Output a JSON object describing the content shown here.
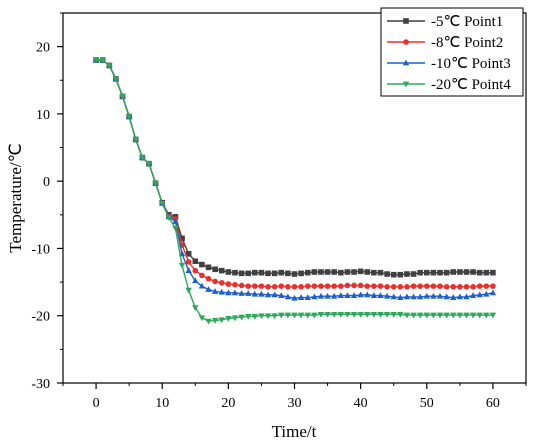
{
  "chart_data": {
    "type": "line",
    "xlabel": "Time/t",
    "ylabel": "Temperature/℃",
    "xlim": [
      -5,
      65
    ],
    "ylim": [
      -30,
      25
    ],
    "xticks": [
      0,
      10,
      20,
      30,
      40,
      50,
      60
    ],
    "yticks": [
      -30,
      -20,
      -10,
      0,
      10,
      20
    ],
    "legend_position": "top-right",
    "series": [
      {
        "name": "-5℃    Point1",
        "color": "#404040",
        "marker": "square",
        "x": [
          0,
          1,
          2,
          3,
          4,
          5,
          6,
          7,
          8,
          9,
          10,
          11,
          12,
          13,
          14,
          15,
          16,
          17,
          18,
          19,
          20,
          21,
          22,
          23,
          24,
          25,
          26,
          27,
          28,
          29,
          30,
          31,
          32,
          33,
          34,
          35,
          36,
          37,
          38,
          39,
          40,
          41,
          42,
          43,
          44,
          45,
          46,
          47,
          48,
          49,
          50,
          51,
          52,
          53,
          54,
          55,
          56,
          57,
          58,
          59,
          60
        ],
        "values": [
          18,
          18,
          17.2,
          15.2,
          12.6,
          9.6,
          6.2,
          3.5,
          2.6,
          -0.3,
          -3.2,
          -5,
          -5.3,
          -8.5,
          -10.8,
          -11.9,
          -12.4,
          -12.8,
          -13.1,
          -13.3,
          -13.5,
          -13.6,
          -13.7,
          -13.7,
          -13.6,
          -13.6,
          -13.7,
          -13.7,
          -13.6,
          -13.7,
          -13.8,
          -13.7,
          -13.6,
          -13.5,
          -13.5,
          -13.5,
          -13.5,
          -13.6,
          -13.5,
          -13.5,
          -13.4,
          -13.5,
          -13.6,
          -13.6,
          -13.8,
          -13.9,
          -13.9,
          -13.8,
          -13.8,
          -13.6,
          -13.6,
          -13.6,
          -13.6,
          -13.6,
          -13.5,
          -13.5,
          -13.5,
          -13.5,
          -13.6,
          -13.6,
          -13.6
        ]
      },
      {
        "name": "-8℃    Point2",
        "color": "#e8312c",
        "marker": "circle",
        "x": [
          0,
          1,
          2,
          3,
          4,
          5,
          6,
          7,
          8,
          9,
          10,
          11,
          12,
          13,
          14,
          15,
          16,
          17,
          18,
          19,
          20,
          21,
          22,
          23,
          24,
          25,
          26,
          27,
          28,
          29,
          30,
          31,
          32,
          33,
          34,
          35,
          36,
          37,
          38,
          39,
          40,
          41,
          42,
          43,
          44,
          45,
          46,
          47,
          48,
          49,
          50,
          51,
          52,
          53,
          54,
          55,
          56,
          57,
          58,
          59,
          60
        ],
        "values": [
          18,
          18,
          17.2,
          15.2,
          12.6,
          9.6,
          6.2,
          3.5,
          2.6,
          -0.3,
          -3.3,
          -5.2,
          -5.6,
          -9.5,
          -12,
          -13.3,
          -14,
          -14.5,
          -14.9,
          -15.1,
          -15.3,
          -15.4,
          -15.5,
          -15.6,
          -15.6,
          -15.6,
          -15.7,
          -15.7,
          -15.6,
          -15.7,
          -15.7,
          -15.7,
          -15.6,
          -15.6,
          -15.6,
          -15.6,
          -15.6,
          -15.6,
          -15.5,
          -15.5,
          -15.5,
          -15.6,
          -15.6,
          -15.6,
          -15.7,
          -15.7,
          -15.7,
          -15.7,
          -15.6,
          -15.6,
          -15.6,
          -15.6,
          -15.6,
          -15.7,
          -15.7,
          -15.7,
          -15.7,
          -15.7,
          -15.6,
          -15.6,
          -15.6
        ]
      },
      {
        "name": "-10℃  Point3",
        "color": "#1f5fc9",
        "marker": "triangle-up",
        "x": [
          0,
          1,
          2,
          3,
          4,
          5,
          6,
          7,
          8,
          9,
          10,
          11,
          12,
          13,
          14,
          15,
          16,
          17,
          18,
          19,
          20,
          21,
          22,
          23,
          24,
          25,
          26,
          27,
          28,
          29,
          30,
          31,
          32,
          33,
          34,
          35,
          36,
          37,
          38,
          39,
          40,
          41,
          42,
          43,
          44,
          45,
          46,
          47,
          48,
          49,
          50,
          51,
          52,
          53,
          54,
          55,
          56,
          57,
          58,
          59,
          60
        ],
        "values": [
          18,
          18,
          17.2,
          15.2,
          12.6,
          9.6,
          6.2,
          3.5,
          2.6,
          -0.3,
          -3.3,
          -5.3,
          -6,
          -10.8,
          -13.3,
          -14.8,
          -15.6,
          -16.1,
          -16.4,
          -16.5,
          -16.6,
          -16.6,
          -16.7,
          -16.7,
          -16.8,
          -16.8,
          -16.9,
          -16.9,
          -17,
          -17.2,
          -17.4,
          -17.3,
          -17.3,
          -17.2,
          -17.1,
          -17.1,
          -17.1,
          -17,
          -17,
          -17,
          -16.9,
          -16.9,
          -17,
          -17,
          -17.1,
          -17.2,
          -17.3,
          -17.2,
          -17.2,
          -17.2,
          -17.1,
          -17.1,
          -17.1,
          -17.2,
          -17.3,
          -17.2,
          -17.2,
          -17,
          -16.9,
          -16.8,
          -16.6
        ]
      },
      {
        "name": "-20℃  Point4",
        "color": "#2ea85a",
        "marker": "triangle-down",
        "x": [
          0,
          1,
          2,
          3,
          4,
          5,
          6,
          7,
          8,
          9,
          10,
          11,
          12,
          13,
          14,
          15,
          16,
          17,
          18,
          19,
          20,
          21,
          22,
          23,
          24,
          25,
          26,
          27,
          28,
          29,
          30,
          31,
          32,
          33,
          34,
          35,
          36,
          37,
          38,
          39,
          40,
          41,
          42,
          43,
          44,
          45,
          46,
          47,
          48,
          49,
          50,
          51,
          52,
          53,
          54,
          55,
          56,
          57,
          58,
          59,
          60
        ],
        "values": [
          18,
          18,
          17.2,
          15.2,
          12.6,
          9.6,
          6.2,
          3.5,
          2.6,
          -0.3,
          -3.3,
          -5.4,
          -7,
          -12.5,
          -16.2,
          -18.8,
          -20.3,
          -20.8,
          -20.7,
          -20.6,
          -20.4,
          -20.3,
          -20.2,
          -20.1,
          -20.1,
          -20,
          -20,
          -20,
          -19.9,
          -19.9,
          -19.9,
          -19.9,
          -19.9,
          -19.9,
          -19.8,
          -19.8,
          -19.8,
          -19.8,
          -19.8,
          -19.8,
          -19.8,
          -19.8,
          -19.8,
          -19.8,
          -19.8,
          -19.8,
          -19.8,
          -19.9,
          -19.9,
          -19.9,
          -19.9,
          -19.9,
          -19.9,
          -19.9,
          -19.9,
          -19.9,
          -19.9,
          -19.9,
          -19.9,
          -19.9,
          -19.9
        ]
      }
    ]
  }
}
